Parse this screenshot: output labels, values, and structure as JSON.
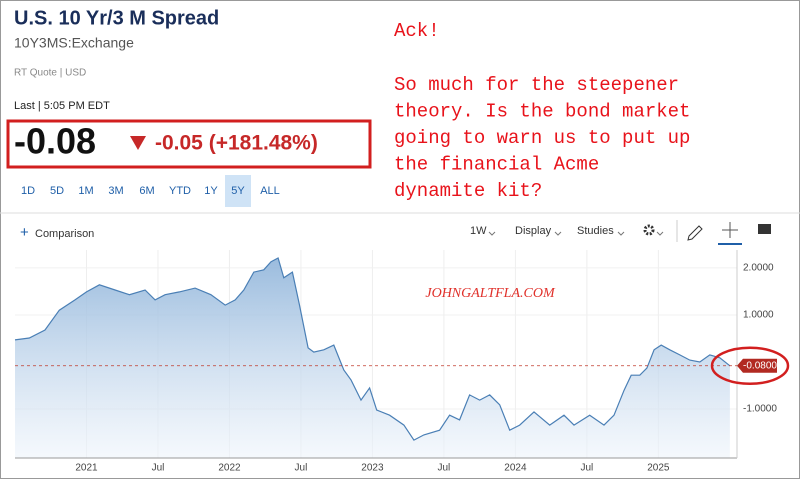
{
  "header": {
    "title": "U.S. 10 Yr/3 M Spread",
    "symbol": "10Y3MS:Exchange",
    "quote_info": "RT Quote | USD",
    "last_label": "Last | 5:05 PM EDT",
    "price": "-0.08",
    "change": "-0.05 (+181.48%)"
  },
  "annotation": {
    "title": "Ack!",
    "lines": [
      "So much for the steepener",
      "theory. Is the bond market",
      "going to warn us to put up",
      "the financial Acme",
      "dynamite kit?"
    ]
  },
  "ranges": [
    "1D",
    "5D",
    "1M",
    "3M",
    "6M",
    "YTD",
    "1Y",
    "5Y",
    "ALL"
  ],
  "selected_range": 7,
  "toolbar": {
    "comparison": "Comparison",
    "interval": "1W",
    "display": "Display",
    "studies": "Studies"
  },
  "watermark": "JOHNGALTFLA.COM",
  "chart_data": {
    "type": "area",
    "color": "#4a7fb5",
    "x": [
      2020.5,
      2020.6,
      2020.71,
      2020.81,
      2020.92,
      2021.0,
      2021.09,
      2021.2,
      2021.3,
      2021.41,
      2021.48,
      2021.55,
      2021.65,
      2021.76,
      2021.87,
      2021.97,
      2022.04,
      2022.1,
      2022.17,
      2022.24,
      2022.29,
      2022.34,
      2022.38,
      2022.44,
      2022.49,
      2022.55,
      2022.59,
      2022.66,
      2022.73,
      2022.8,
      2022.85,
      2022.92,
      2022.98,
      2023.03,
      2023.12,
      2023.22,
      2023.29,
      2023.36,
      2023.47,
      2023.54,
      2023.61,
      2023.68,
      2023.75,
      2023.82,
      2023.89,
      2023.96,
      2024.03,
      2024.13,
      2024.24,
      2024.34,
      2024.41,
      2024.52,
      2024.62,
      2024.69,
      2024.76,
      2024.81,
      2024.87,
      2024.92,
      2024.97,
      2025.02,
      2025.08,
      2025.15,
      2025.22,
      2025.29,
      2025.36,
      2025.43,
      2025.5
    ],
    "values": [
      0.47,
      0.51,
      0.68,
      1.1,
      1.32,
      1.49,
      1.64,
      1.53,
      1.43,
      1.53,
      1.32,
      1.43,
      1.49,
      1.57,
      1.43,
      1.21,
      1.32,
      1.53,
      1.91,
      1.96,
      2.13,
      2.21,
      1.79,
      1.91,
      1.21,
      0.3,
      0.21,
      0.26,
      0.36,
      -0.17,
      -0.38,
      -0.81,
      -0.55,
      -1.02,
      -1.13,
      -1.34,
      -1.66,
      -1.55,
      -1.45,
      -1.13,
      -1.23,
      -0.7,
      -0.81,
      -0.7,
      -0.91,
      -1.45,
      -1.34,
      -1.06,
      -1.34,
      -1.13,
      -1.34,
      -1.13,
      -1.34,
      -1.13,
      -0.6,
      -0.28,
      -0.28,
      -0.13,
      0.26,
      0.36,
      0.26,
      0.15,
      0.04,
      0.0,
      0.15,
      0.09,
      -0.08
    ],
    "xlim": [
      2020.5,
      2025.55
    ],
    "xticks": [
      {
        "value": 2021,
        "label": "2021"
      },
      {
        "value": 2021.5,
        "label": "Jul"
      },
      {
        "value": 2022,
        "label": "2022"
      },
      {
        "value": 2022.5,
        "label": "Jul"
      },
      {
        "value": 2023,
        "label": "2023"
      },
      {
        "value": 2023.5,
        "label": "Jul"
      },
      {
        "value": 2024,
        "label": "2024"
      },
      {
        "value": 2024.5,
        "label": "Jul"
      },
      {
        "value": 2025,
        "label": "2025"
      }
    ],
    "ylim": [
      -2.04,
      2.38
    ],
    "yticks": [
      {
        "value": 2,
        "label": "2.0000"
      },
      {
        "value": 1,
        "label": "1.0000"
      },
      {
        "value": -1,
        "label": "-1.0000"
      }
    ],
    "last_value": {
      "value": -0.08,
      "label": "-0.0800"
    },
    "grid": true
  }
}
